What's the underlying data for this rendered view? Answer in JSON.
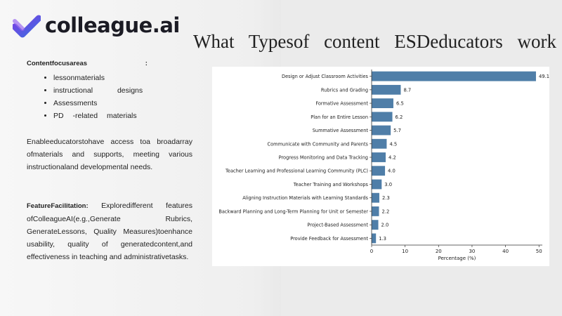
{
  "logo": {
    "text": "colleague.ai",
    "colors": {
      "gradient_start": "#7b3fe4",
      "gradient_end": "#3d6ce0",
      "text": "#1b1b24"
    }
  },
  "title": "What Typesof content ESDeducators work on?",
  "left": {
    "focus_heading": "Contentfocusareas",
    "focus_colon": ":",
    "focus_items": [
      "lessonmaterials",
      "instructional designs",
      "Assessments",
      "PD -related materials"
    ],
    "access_text": "Enableeducatorstohave access toa broadarray ofmaterials and supports, meeting various instructionaland developmental needs.",
    "facilitation_heading": "FeatureFacilitation:",
    "facilitation_text": "Exploredifferent features ofColleagueAI(e.g.,Generate Rubrics, GenerateLessons, Quality Measures)toenhance usability, quality of generatedcontent,and effectiveness in teaching and administrativetasks."
  },
  "chart_data": {
    "type": "bar",
    "orientation": "horizontal",
    "categories": [
      "Design or Adjust Classroom Activities",
      "Rubrics and Grading",
      "Formative Assessment",
      "Plan for an Entire Lesson",
      "Summative Assessment",
      "Communicate with Community and Parents",
      "Progress Monitoring and Data Tracking",
      "Teacher Learning and Professional Learning Community (PLC)",
      "Teacher Training and Workshops",
      "Aligning Instruction Materials with Learning Standards",
      "Backward Planning and Long-Term Planning for Unit or Semester",
      "Project-Based Assessment",
      "Provide Feedback for Assessment"
    ],
    "values": [
      49.1,
      8.7,
      6.5,
      6.2,
      5.7,
      4.5,
      4.2,
      4.0,
      3.0,
      2.3,
      2.2,
      2.0,
      1.3
    ],
    "value_labels": [
      "49.1",
      "8.7",
      "6.5",
      "6.2",
      "5.7",
      "4.5",
      "4.2",
      "4.0",
      "3.0",
      "2.3",
      "2.2",
      "2.0",
      "1.3"
    ],
    "xlabel": "Percentage (%)",
    "xlim": [
      0,
      51
    ],
    "xticks": [
      0,
      10,
      20,
      30,
      40,
      50
    ],
    "bar_color": "#4f7ea8",
    "grid": false
  }
}
